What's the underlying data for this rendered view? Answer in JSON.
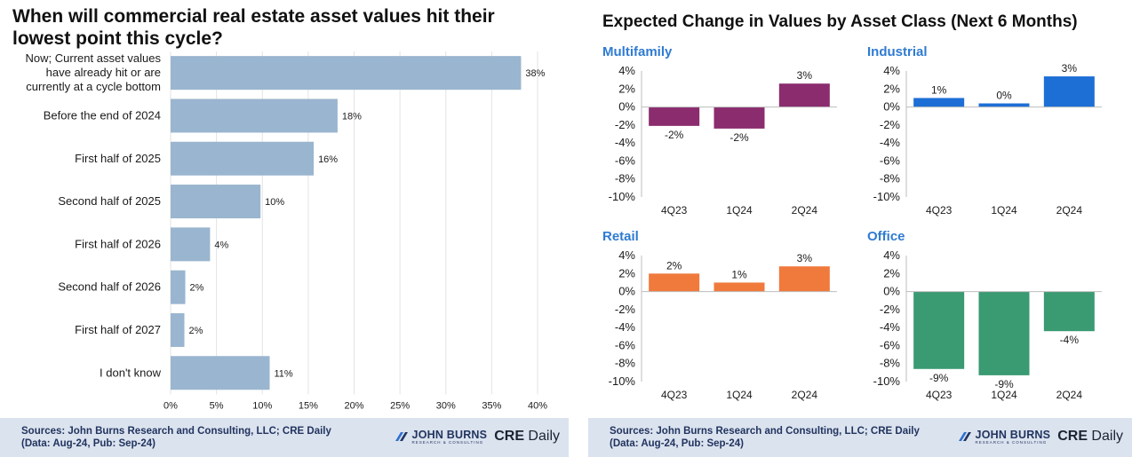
{
  "left": {
    "title": "When will commercial real estate asset values hit their lowest point this cycle?",
    "footer": {
      "sources": "Sources: John Burns Research and Consulting, LLC; CRE Daily",
      "data_note": "(Data: Aug-24, Pub: Sep-24)"
    }
  },
  "right": {
    "title": "Expected Change in Values by Asset Class (Next 6 Months)",
    "footer": {
      "sources": "Sources: John Burns Research and Consulting, LLC; CRE Daily",
      "data_note": "(Data: Aug-24, Pub: Sep-24)"
    }
  },
  "logos": {
    "jb_name": "JOHN BURNS",
    "jb_sub": "RESEARCH & CONSULTING",
    "cre_bold": "CRE",
    "cre_rest": " Daily"
  },
  "chart_data": [
    {
      "type": "bar",
      "orientation": "horizontal",
      "title": "When will commercial real estate asset values hit their lowest point this cycle?",
      "categories": [
        [
          "Now; Current asset values",
          "have already hit or are",
          "currently at a cycle bottom"
        ],
        [
          "Before the end of 2024"
        ],
        [
          "First half of 2025"
        ],
        [
          "Second half of 2025"
        ],
        [
          "First half of 2026"
        ],
        [
          "Second half of 2026"
        ],
        [
          "First half of 2027"
        ],
        [
          "I don't know"
        ]
      ],
      "values": [
        38.2,
        18.2,
        15.6,
        9.8,
        4.3,
        1.6,
        1.5,
        10.8
      ],
      "data_labels": [
        "38%",
        "18%",
        "16%",
        "10%",
        "4%",
        "2%",
        "2%",
        "11%"
      ],
      "xlim": [
        0,
        40
      ],
      "xticks": [
        "0%",
        "5%",
        "10%",
        "15%",
        "20%",
        "25%",
        "30%",
        "35%",
        "40%"
      ],
      "xtick_values": [
        0,
        5,
        10,
        15,
        20,
        25,
        30,
        35,
        40
      ],
      "color": "#9ab5cf",
      "grid": true
    },
    {
      "type": "bar",
      "title": "Multifamily",
      "categories": [
        "4Q23",
        "1Q24",
        "2Q24"
      ],
      "values": [
        -2.1,
        -2.4,
        2.6
      ],
      "data_labels": [
        "-2%",
        "-2%",
        "3%"
      ],
      "ylim": [
        -10,
        4
      ],
      "yticks": [
        "4%",
        "2%",
        "0%",
        "-2%",
        "-4%",
        "-6%",
        "-8%",
        "-10%"
      ],
      "ytick_values": [
        4,
        2,
        0,
        -2,
        -4,
        -6,
        -8,
        -10
      ],
      "color": "#8b2c6e"
    },
    {
      "type": "bar",
      "title": "Industrial",
      "categories": [
        "4Q23",
        "1Q24",
        "2Q24"
      ],
      "values": [
        1.0,
        0.4,
        3.4
      ],
      "data_labels": [
        "1%",
        "0%",
        "3%"
      ],
      "ylim": [
        -10,
        4
      ],
      "yticks": [
        "4%",
        "2%",
        "0%",
        "-2%",
        "-4%",
        "-6%",
        "-8%",
        "-10%"
      ],
      "ytick_values": [
        4,
        2,
        0,
        -2,
        -4,
        -6,
        -8,
        -10
      ],
      "color": "#1d6fd6"
    },
    {
      "type": "bar",
      "title": "Retail",
      "categories": [
        "4Q23",
        "1Q24",
        "2Q24"
      ],
      "values": [
        2.0,
        1.0,
        2.8
      ],
      "data_labels": [
        "2%",
        "1%",
        "3%"
      ],
      "ylim": [
        -10,
        4
      ],
      "yticks": [
        "4%",
        "2%",
        "0%",
        "-2%",
        "-4%",
        "-6%",
        "-8%",
        "-10%"
      ],
      "ytick_values": [
        4,
        2,
        0,
        -2,
        -4,
        -6,
        -8,
        -10
      ],
      "color": "#f07a3c"
    },
    {
      "type": "bar",
      "title": "Office",
      "categories": [
        "4Q23",
        "1Q24",
        "2Q24"
      ],
      "values": [
        -8.6,
        -9.3,
        -4.4
      ],
      "data_labels": [
        "-9%",
        "-9%",
        "-4%"
      ],
      "ylim": [
        -10,
        4
      ],
      "yticks": [
        "4%",
        "2%",
        "0%",
        "-2%",
        "-4%",
        "-6%",
        "-8%",
        "-10%"
      ],
      "ytick_values": [
        4,
        2,
        0,
        -2,
        -4,
        -6,
        -8,
        -10
      ],
      "color": "#3a9a72"
    }
  ]
}
